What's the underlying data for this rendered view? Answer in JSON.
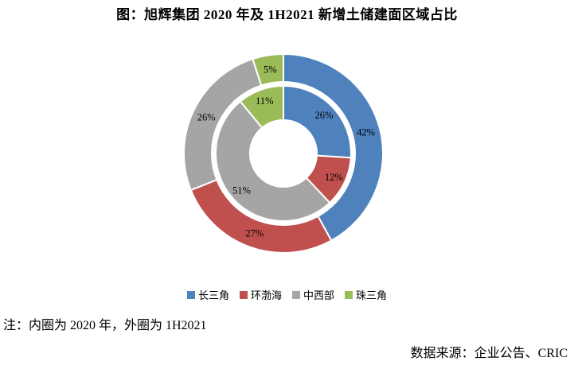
{
  "title": "图：旭辉集团 2020 年及 1H2021 新增土储建面区域占比",
  "note": "注：内圈为 2020 年，外圈为 1H2021",
  "source": "数据来源：企业公告、CRIC",
  "chart_data": {
    "type": "pie",
    "subtype": "double-ring-donut",
    "title": "图：旭辉集团 2020 年及 1H2021 新增土储建面区域占比",
    "categories": [
      "长三角",
      "环渤海",
      "中西部",
      "珠三角"
    ],
    "colors": [
      "#4f81bd",
      "#c0504d",
      "#a5a5a5",
      "#9bbb59"
    ],
    "series": [
      {
        "name": "2020",
        "ring": "inner",
        "values": [
          26,
          12,
          51,
          11
        ]
      },
      {
        "name": "1H2021",
        "ring": "outer",
        "values": [
          42,
          27,
          26,
          5
        ]
      }
    ],
    "label_format": "percent",
    "legend_position": "bottom",
    "annotations": [
      "内圈为 2020 年",
      "外圈为 1H2021"
    ]
  }
}
